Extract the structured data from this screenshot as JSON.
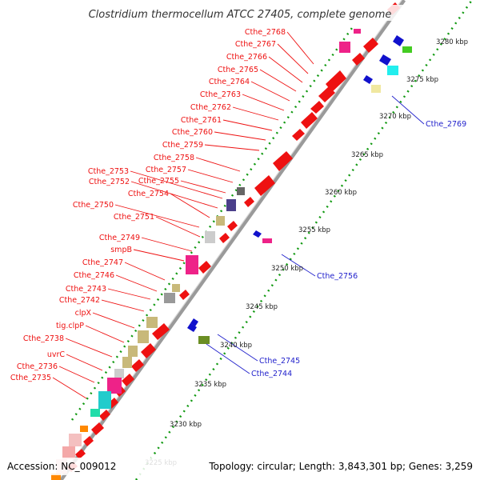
{
  "title": "Clostridium thermocellum ATCC 27405, complete genome",
  "footer": {
    "accession": "Accession: NC_009012",
    "topology": "Topology: circular; Length: 3,843,301 bp; Genes: 3,259"
  },
  "colors": {
    "forward_label": "#ee1111",
    "reverse_label": "#2222cc",
    "tick_dot": "#119911",
    "backbone": "#999999"
  },
  "scale_ticks": [
    "3225 kbp",
    "3230 kbp",
    "3235 kbp",
    "3240 kbp",
    "3245 kbp",
    "3250 kbp",
    "3255 kbp",
    "3260 kbp",
    "3265 kbp",
    "3270 kbp",
    "3275 kbp",
    "3280 kbp"
  ],
  "forward_genes": [
    "Cthe_2768",
    "Cthe_2767",
    "Cthe_2766",
    "Cthe_2765",
    "Cthe_2764",
    "Cthe_2763",
    "Cthe_2762",
    "Cthe_2761",
    "Cthe_2760",
    "Cthe_2759",
    "Cthe_2758",
    "Cthe_2757",
    "Cthe_2753",
    "Cthe_2755",
    "Cthe_2752",
    "Cthe_2754",
    "Cthe_2750",
    "Cthe_2751",
    "Cthe_2749",
    "smpB",
    "Cthe_2747",
    "Cthe_2746",
    "Cthe_2743",
    "Cthe_2742",
    "clpX",
    "tig.clpP",
    "Cthe_2738",
    "uvrC",
    "Cthe_2736",
    "Cthe_2735"
  ],
  "reverse_genes": [
    "Cthe_2769",
    "Cthe_2756",
    "Cthe_2745",
    "Cthe_2744"
  ]
}
